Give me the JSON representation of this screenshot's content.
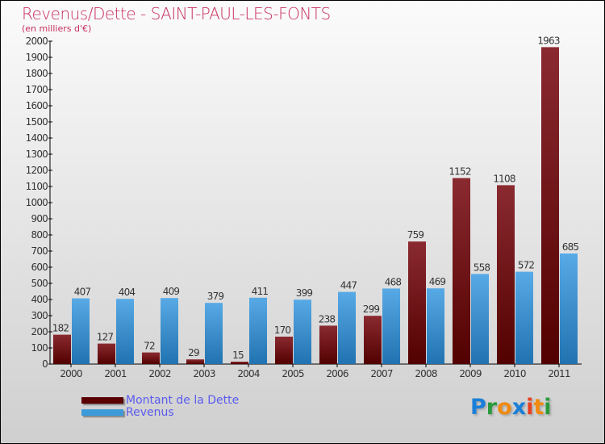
{
  "chart_data": {
    "type": "bar",
    "title": "Revenus/Dette - SAINT-PAUL-LES-FONTS",
    "subtitle": "(en milliers d'€)",
    "xlabel": "",
    "ylabel": "",
    "ylim": [
      0,
      2000
    ],
    "ytick_step": 100,
    "categories": [
      "2000",
      "2001",
      "2002",
      "2003",
      "2004",
      "2005",
      "2006",
      "2007",
      "2008",
      "2009",
      "2010",
      "2011"
    ],
    "series": [
      {
        "name": "Montant de la Dette",
        "color": "#6b1010",
        "values": [
          182,
          127,
          72,
          29,
          15,
          170,
          238,
          299,
          759,
          1152,
          1108,
          1963
        ]
      },
      {
        "name": "Revenus",
        "color": "#3d9ad8",
        "values": [
          407,
          404,
          409,
          379,
          411,
          399,
          447,
          468,
          469,
          558,
          572,
          685
        ]
      }
    ],
    "legend_position": "bottom-left"
  },
  "logo": {
    "text": "Proxiti"
  }
}
